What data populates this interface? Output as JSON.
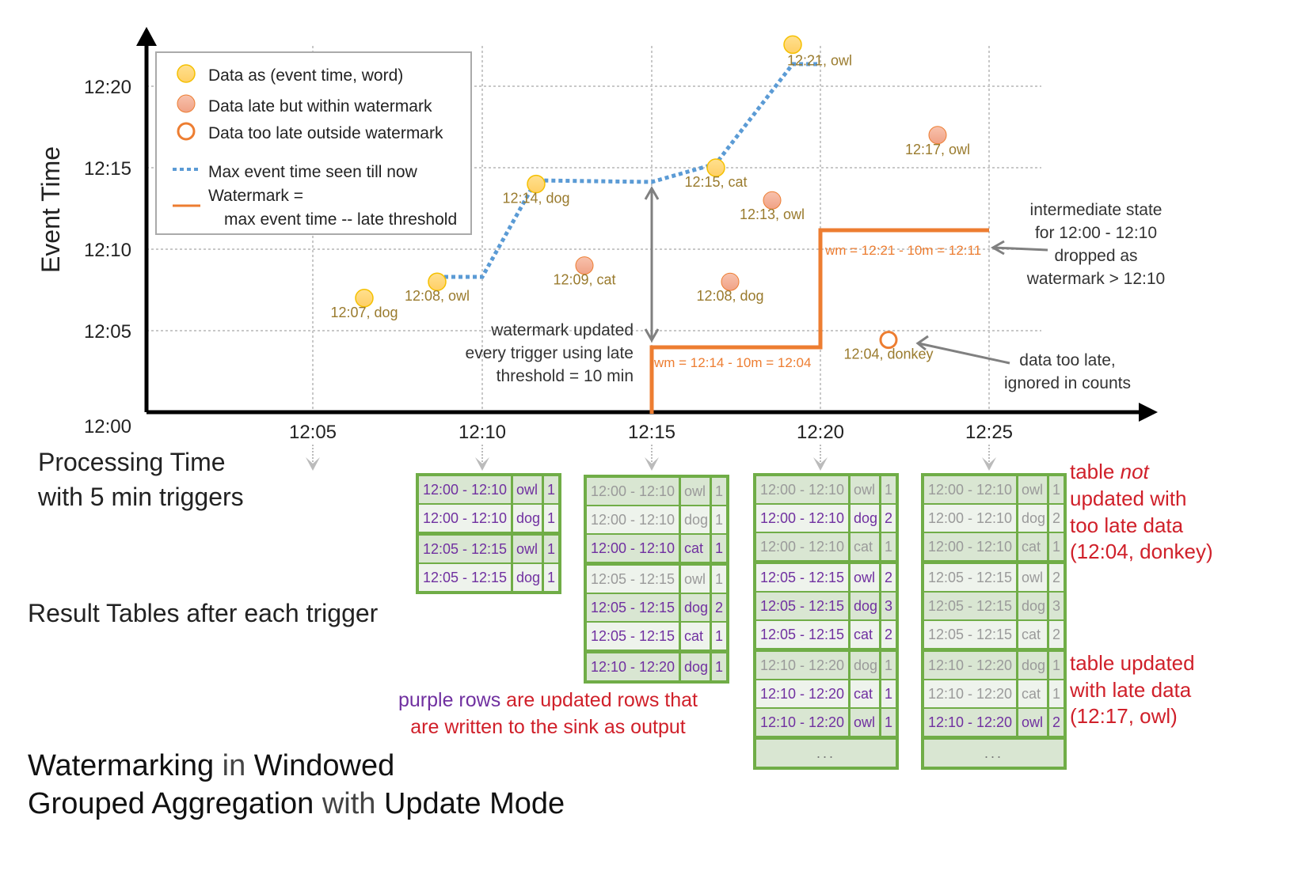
{
  "chart": {
    "y_axis_label": "Event Time",
    "y_ticks": [
      "12:00",
      "12:05",
      "12:10",
      "12:15",
      "12:20"
    ],
    "x_ticks": [
      "12:05",
      "12:10",
      "12:15",
      "12:20",
      "12:25"
    ],
    "x_axis_label_line1": "Processing Time",
    "x_axis_label_line2": "with 5 min triggers",
    "colors": {
      "on_time": "#ffd97a",
      "late": "#f4b09a",
      "too_late": "#ed7d31",
      "max_line": "#5b9bd5",
      "watermark": "#ed7d31",
      "label": "#9a7b2e",
      "updated": "#7030a0",
      "note": "#d0202a",
      "table_border": "#70ad47"
    },
    "legend": {
      "on_time": "Data as (event time, word)",
      "late": "Data late but within watermark",
      "too_late": "Data too late outside watermark",
      "max_line": "Max event time seen till now",
      "watermark_line1": "Watermark =",
      "watermark_line2": "max event time -- late threshold"
    },
    "points": [
      {
        "label": "12:07, dog",
        "event_min": 7,
        "kind": "on_time"
      },
      {
        "label": "12:08, owl",
        "event_min": 8,
        "kind": "on_time"
      },
      {
        "label": "12:14, dog",
        "event_min": 14,
        "kind": "on_time"
      },
      {
        "label": "12:09, cat",
        "event_min": 9,
        "kind": "late"
      },
      {
        "label": "12:15, cat",
        "event_min": 15,
        "kind": "on_time"
      },
      {
        "label": "12:08, dog",
        "event_min": 8,
        "kind": "late"
      },
      {
        "label": "12:13, owl",
        "event_min": 13,
        "kind": "late"
      },
      {
        "label": "12:21, owl",
        "event_min": 21,
        "kind": "on_time"
      },
      {
        "label": "12:04, donkey",
        "event_min": 4,
        "kind": "too_late"
      },
      {
        "label": "12:17, owl",
        "event_min": 17,
        "kind": "late"
      }
    ],
    "wm_label_1": "wm = 12:14 - 10m = 12:04",
    "wm_label_2": "wm = 12:21 - 10m = 12:11",
    "note_watermark": [
      "watermark updated",
      "every trigger using late",
      "threshold = 10 min"
    ],
    "note_state": [
      "intermediate state",
      "for 12:00 - 12:10",
      "dropped as",
      "watermark > 12:10"
    ],
    "note_too_late": [
      "data too late,",
      "ignored in counts"
    ]
  },
  "result_tables_label": "Result Tables after each trigger",
  "tables": [
    {
      "rows": [
        [
          "12:00 - 12:10",
          "owl",
          "1",
          true
        ],
        [
          "12:00 - 12:10",
          "dog",
          "1",
          true
        ],
        [
          "12:05 - 12:15",
          "owl",
          "1",
          true
        ],
        [
          "12:05 - 12:15",
          "dog",
          "1",
          true
        ]
      ],
      "more": false
    },
    {
      "rows": [
        [
          "12:00 - 12:10",
          "owl",
          "1",
          false
        ],
        [
          "12:00 - 12:10",
          "dog",
          "1",
          false
        ],
        [
          "12:00 - 12:10",
          "cat",
          "1",
          true
        ],
        [
          "12:05 - 12:15",
          "owl",
          "1",
          false
        ],
        [
          "12:05 - 12:15",
          "dog",
          "2",
          true
        ],
        [
          "12:05 - 12:15",
          "cat",
          "1",
          true
        ],
        [
          "12:10 - 12:20",
          "dog",
          "1",
          true
        ]
      ],
      "more": false
    },
    {
      "rows": [
        [
          "12:00 - 12:10",
          "owl",
          "1",
          false
        ],
        [
          "12:00 - 12:10",
          "dog",
          "2",
          true
        ],
        [
          "12:00 - 12:10",
          "cat",
          "1",
          false
        ],
        [
          "12:05 - 12:15",
          "owl",
          "2",
          true
        ],
        [
          "12:05 - 12:15",
          "dog",
          "3",
          true
        ],
        [
          "12:05 - 12:15",
          "cat",
          "2",
          true
        ],
        [
          "12:10 - 12:20",
          "dog",
          "1",
          false
        ],
        [
          "12:10 - 12:20",
          "cat",
          "1",
          true
        ],
        [
          "12:10 - 12:20",
          "owl",
          "1",
          true
        ]
      ],
      "more": true
    },
    {
      "rows": [
        [
          "12:00 - 12:10",
          "owl",
          "1",
          false
        ],
        [
          "12:00 - 12:10",
          "dog",
          "2",
          false
        ],
        [
          "12:00 - 12:10",
          "cat",
          "1",
          false
        ],
        [
          "12:05 - 12:15",
          "owl",
          "2",
          false
        ],
        [
          "12:05 - 12:15",
          "dog",
          "3",
          false
        ],
        [
          "12:05 - 12:15",
          "cat",
          "2",
          false
        ],
        [
          "12:10 - 12:20",
          "dog",
          "1",
          false
        ],
        [
          "12:10 - 12:20",
          "cat",
          "1",
          false
        ],
        [
          "12:10 - 12:20",
          "owl",
          "2",
          true
        ]
      ],
      "more": true
    }
  ],
  "ellipsis": "...",
  "legend_note": {
    "purple": "purple rows",
    "rest1": " are updated rows that",
    "line2": "are written to the sink as output"
  },
  "note_not_updated": {
    "l1a": "table ",
    "l1b": "not",
    "l2": "updated with",
    "l3": "too late data",
    "l4": "(12:04, donkey)"
  },
  "note_updated": [
    "table updated",
    "with late data",
    "(12:17, owl)"
  ],
  "title": {
    "w1": "Watermarking",
    "w2": " in ",
    "w3": "Windowed",
    "w4": "Grouped Aggregation",
    "w5": " with ",
    "w6": "Update Mode"
  }
}
